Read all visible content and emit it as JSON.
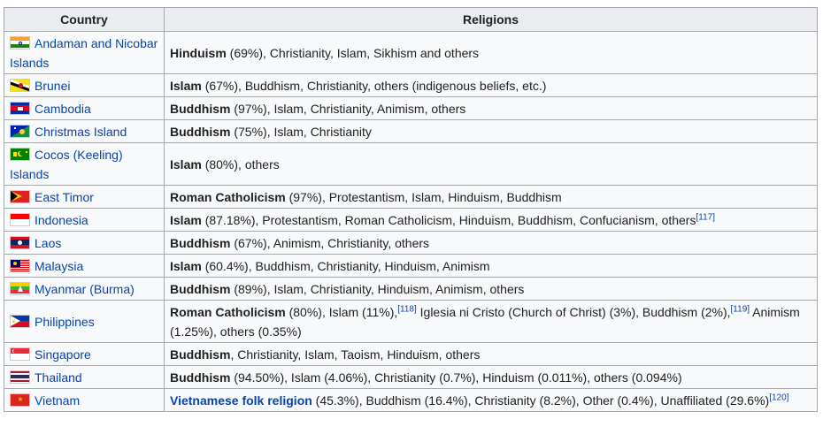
{
  "table": {
    "headers": {
      "country": "Country",
      "religions": "Religions"
    },
    "rows": [
      {
        "country": "Andaman and Nicobar Islands",
        "flag": "india-flag",
        "main": "Hinduism",
        "rest": " (69%), Christianity, Islam, Sikhism and others"
      },
      {
        "country": "Brunei",
        "flag": "brunei-flag",
        "main": "Islam",
        "rest": " (67%), Buddhism, Christianity, others (indigenous beliefs, etc.)"
      },
      {
        "country": "Cambodia",
        "flag": "cambodia-flag",
        "main": "Buddhism",
        "rest": " (97%), Islam, Christianity, Animism, others"
      },
      {
        "country": "Christmas Island",
        "flag": "christmas-island-flag",
        "main": "Buddhism",
        "rest": " (75%), Islam, Christianity"
      },
      {
        "country": "Cocos (Keeling) Islands",
        "flag": "cocos-islands-flag",
        "main": "Islam",
        "rest": " (80%), others"
      },
      {
        "country": "East Timor",
        "flag": "east-timor-flag",
        "main": "Roman Catholicism",
        "rest": " (97%), Protestantism, Islam, Hinduism, Buddhism"
      },
      {
        "country": "Indonesia",
        "flag": "indonesia-flag",
        "main": "Islam",
        "rest": " (87.18%), Protestantism, Roman Catholicism, Hinduism, Buddhism, Confucianism, others",
        "ref": "[117]"
      },
      {
        "country": "Laos",
        "flag": "laos-flag",
        "main": "Buddhism",
        "rest": " (67%), Animism, Christianity, others"
      },
      {
        "country": "Malaysia",
        "flag": "malaysia-flag",
        "main": "Islam",
        "rest": " (60.4%), Buddhism, Christianity, Hinduism, Animism"
      },
      {
        "country": "Myanmar (Burma)",
        "flag": "myanmar-flag",
        "main": "Buddhism",
        "rest": " (89%), Islam, Christianity, Hinduism, Animism, others"
      },
      {
        "country": "Philippines",
        "flag": "philippines-flag",
        "main": "Roman Catholicism",
        "rest_a": " (80%), Islam (11%),",
        "ref_a": "[118]",
        "rest_b": " Iglesia ni Cristo (Church of Christ) (3%), Buddhism (2%),",
        "ref_b": "[119]",
        "rest_c": " Animism (1.25%), others (0.35%)"
      },
      {
        "country": "Singapore",
        "flag": "singapore-flag",
        "main": "Buddhism",
        "rest": ", Christianity, Islam, Taoism, Hinduism, others"
      },
      {
        "country": "Thailand",
        "flag": "thailand-flag",
        "main": "Buddhism",
        "rest": " (94.50%), Islam (4.06%), Christianity (0.7%), Hinduism (0.011%), others (0.094%)"
      },
      {
        "country": "Vietnam",
        "flag": "vietnam-flag",
        "main": "Vietnamese folk religion",
        "rest": " (45.3%), Buddhism (16.4%), Christianity (8.2%), Other (0.4%), Unaffiliated (29.6%)",
        "ref": "[120]"
      }
    ]
  }
}
